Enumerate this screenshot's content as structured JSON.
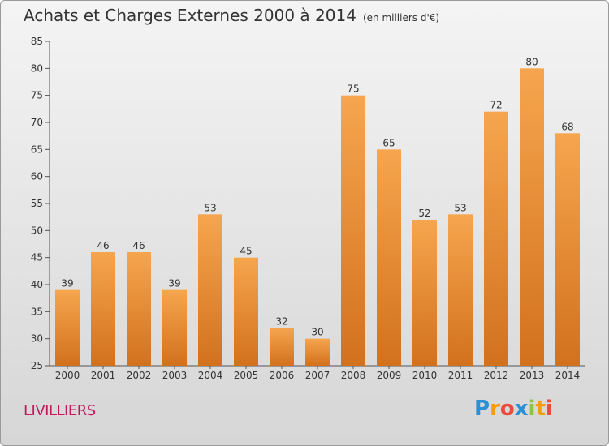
{
  "title": "Achats et Charges Externes 2000 à 2014",
  "subtitle": "(en milliers d'€)",
  "commune": "LIVILLIERS",
  "logo": {
    "letters": [
      "P",
      "r",
      "o",
      "x",
      "i",
      "t",
      "i"
    ],
    "colors": [
      "#2a8fd6",
      "#f39c12",
      "#e74c3c",
      "#2a8fd6",
      "#8bc34a",
      "#f39c12",
      "#e74c3c"
    ]
  },
  "colors": {
    "bar_top": "#f6a54e",
    "bar_bottom": "#d2711e",
    "commune": "#c2185b"
  },
  "chart_data": {
    "type": "bar",
    "title": "Achats et Charges Externes 2000 à 2014",
    "subtitle": "(en milliers d'€)",
    "xlabel": "",
    "ylabel": "",
    "categories": [
      "2000",
      "2001",
      "2002",
      "2003",
      "2004",
      "2005",
      "2006",
      "2007",
      "2008",
      "2009",
      "2010",
      "2011",
      "2012",
      "2013",
      "2014"
    ],
    "values": [
      39,
      46,
      46,
      39,
      53,
      45,
      32,
      30,
      75,
      65,
      52,
      53,
      72,
      80,
      68
    ],
    "ylim": [
      25,
      85
    ],
    "yticks": [
      25,
      30,
      35,
      40,
      45,
      50,
      55,
      60,
      65,
      70,
      75,
      80,
      85
    ],
    "grid": false,
    "data_labels": true
  }
}
